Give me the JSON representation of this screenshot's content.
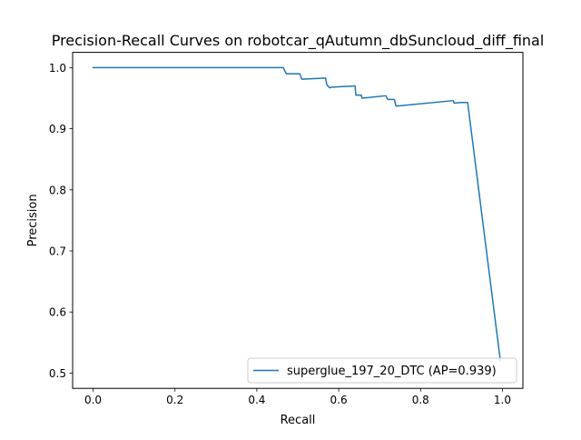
{
  "chart_data": {
    "type": "line",
    "title": "Precision-Recall Curves on robotcar_qAutumn_dbSuncloud_diff_final",
    "xlabel": "Recall",
    "ylabel": "Precision",
    "xlim": [
      -0.05,
      1.05
    ],
    "ylim": [
      0.475,
      1.025
    ],
    "xticks": [
      0.0,
      0.2,
      0.4,
      0.6,
      0.8,
      1.0
    ],
    "xtick_labels": [
      "0.0",
      "0.2",
      "0.4",
      "0.6",
      "0.8",
      "1.0"
    ],
    "yticks": [
      0.5,
      0.6,
      0.7,
      0.8,
      0.9,
      1.0
    ],
    "ytick_labels": [
      "0.5",
      "0.6",
      "0.7",
      "0.8",
      "0.9",
      "1.0"
    ],
    "grid": false,
    "legend": {
      "position": "lower-right",
      "entries": [
        "superglue_197_20_DTC (AP=0.939)"
      ]
    },
    "series": [
      {
        "name": "superglue_197_20_DTC (AP=0.939)",
        "color": "#1f77b4",
        "x": [
          0.0,
          0.465,
          0.468,
          0.472,
          0.505,
          0.51,
          0.568,
          0.571,
          0.578,
          0.582,
          0.64,
          0.642,
          0.655,
          0.657,
          0.715,
          0.72,
          0.736,
          0.74,
          0.88,
          0.882,
          0.9,
          0.915,
          0.995
        ],
        "y": [
          1.0,
          1.0,
          0.995,
          0.99,
          0.99,
          0.981,
          0.983,
          0.972,
          0.967,
          0.968,
          0.97,
          0.955,
          0.955,
          0.95,
          0.954,
          0.948,
          0.948,
          0.937,
          0.946,
          0.942,
          0.943,
          0.943,
          0.52
        ]
      }
    ]
  }
}
